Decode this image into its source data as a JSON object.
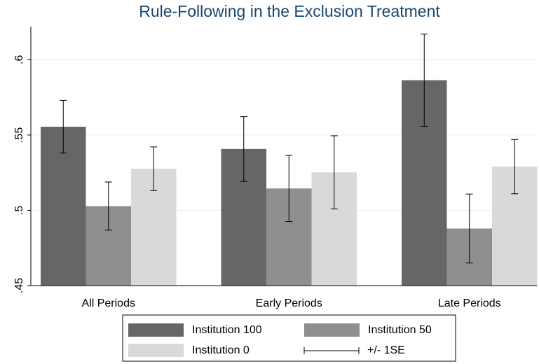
{
  "chart_data": {
    "type": "bar",
    "title": "Rule-Following in the Exclusion Treatment",
    "categories": [
      "All Periods",
      "Early Periods",
      "Late Periods"
    ],
    "series": [
      {
        "name": "Institution 100",
        "color": "#666666",
        "values": [
          0.5555,
          0.5407,
          0.5864
        ],
        "errors": [
          0.0175,
          0.0215,
          0.0306
        ]
      },
      {
        "name": "Institution 50",
        "color": "#8f8f8f",
        "values": [
          0.5028,
          0.5145,
          0.4879
        ],
        "errors": [
          0.016,
          0.022,
          0.0229
        ]
      },
      {
        "name": "Institution 0",
        "color": "#d9d9d9",
        "values": [
          0.5276,
          0.5252,
          0.529
        ],
        "errors": [
          0.0145,
          0.0243,
          0.018
        ]
      }
    ],
    "error_label": "+/- 1SE",
    "ylim": [
      0.45,
      0.622
    ],
    "yticks": [
      {
        "value": 0.45,
        "label": ".45"
      },
      {
        "value": 0.5,
        "label": ".5"
      },
      {
        "value": 0.55,
        "label": ".55"
      },
      {
        "value": 0.6,
        "label": ".6"
      }
    ],
    "grid": true
  }
}
